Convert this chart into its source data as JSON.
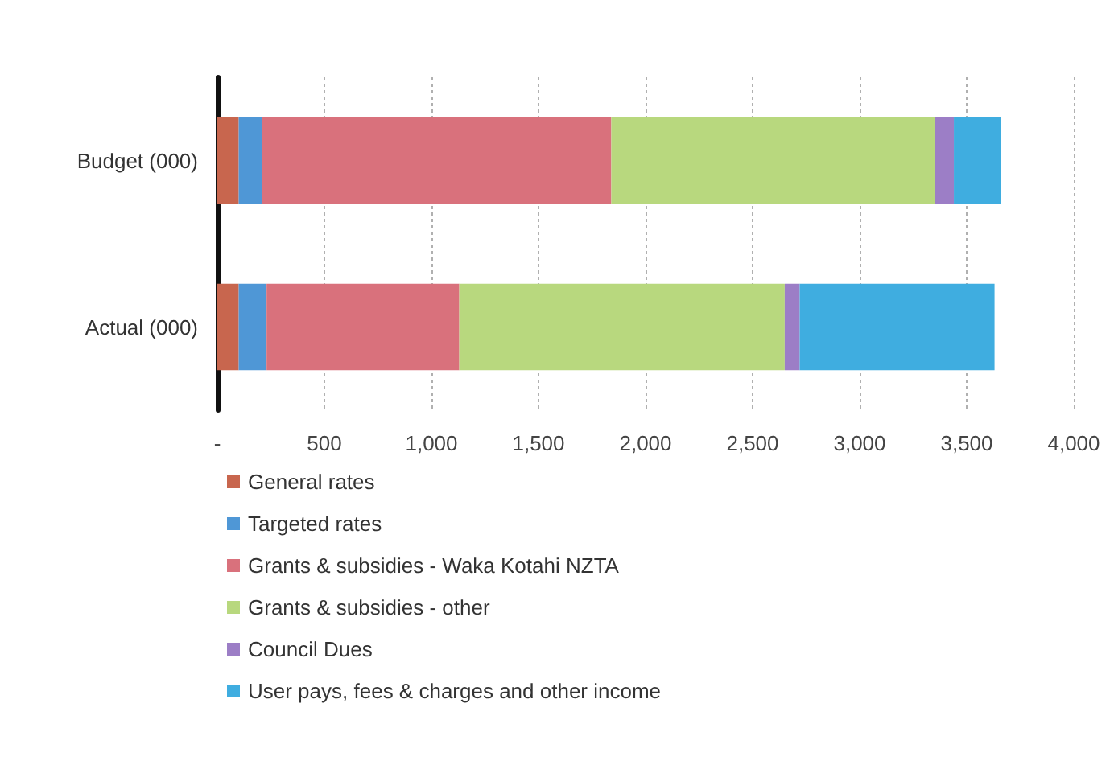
{
  "chart_data": {
    "type": "bar",
    "orientation": "horizontal",
    "stacked": true,
    "categories": [
      "Budget (000)",
      "Actual (000)"
    ],
    "series": [
      {
        "name": "General rates",
        "color": "#c8664e",
        "values": [
          100,
          100
        ]
      },
      {
        "name": "Targeted rates",
        "color": "#4f97d6",
        "values": [
          110,
          130
        ]
      },
      {
        "name": "Grants & subsidies - Waka Kotahi NZTA",
        "color": "#d9717c",
        "values": [
          1630,
          900
        ]
      },
      {
        "name": "Grants & subsidies - other",
        "color": "#b8d87e",
        "values": [
          1510,
          1520
        ]
      },
      {
        "name": "Council Dues",
        "color": "#9c7ec6",
        "values": [
          90,
          70
        ]
      },
      {
        "name": "User pays, fees & charges and other income",
        "color": "#3fade0",
        "values": [
          220,
          910
        ]
      }
    ],
    "xlim": [
      0,
      4000
    ],
    "xticks": [
      {
        "value": 0,
        "label": "-"
      },
      {
        "value": 500,
        "label": "500"
      },
      {
        "value": 1000,
        "label": "1,000"
      },
      {
        "value": 1500,
        "label": "1,500"
      },
      {
        "value": 2000,
        "label": "2,000"
      },
      {
        "value": 2500,
        "label": "2,500"
      },
      {
        "value": 3000,
        "label": "3,000"
      },
      {
        "value": 3500,
        "label": "3,500"
      },
      {
        "value": 4000,
        "label": "4,000"
      }
    ],
    "grid": "x",
    "legend": "bottom"
  }
}
